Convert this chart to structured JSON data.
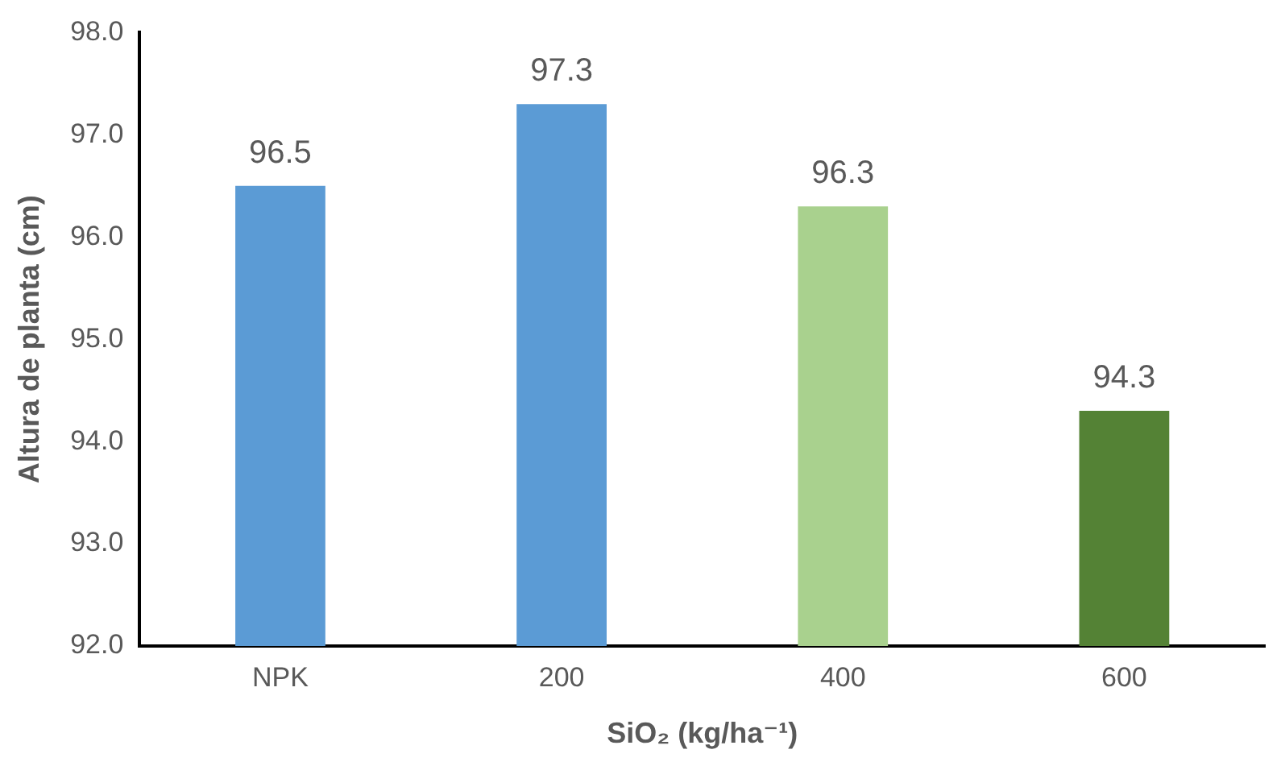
{
  "chart_data": {
    "type": "bar",
    "xlabel": "SiO₂ (kg/ha⁻¹)",
    "ylabel": "Altura de planta (cm)",
    "categories": [
      "NPK",
      "200",
      "400",
      "600"
    ],
    "values": [
      96.5,
      97.3,
      96.3,
      94.3
    ],
    "colors": [
      "#5b9bd5",
      "#5b9bd5",
      "#a9d18e",
      "#548235"
    ],
    "ylim": [
      92,
      98
    ],
    "yticks": [
      {
        "value": 92,
        "label": "92.0"
      },
      {
        "value": 93,
        "label": "93.0"
      },
      {
        "value": 94,
        "label": "94.0"
      },
      {
        "value": 95,
        "label": "95.0"
      },
      {
        "value": 96,
        "label": "96.0"
      },
      {
        "value": 97,
        "label": "97.0"
      },
      {
        "value": 98,
        "label": "98.0"
      }
    ],
    "data_labels": true,
    "grid": false,
    "legend": false
  }
}
